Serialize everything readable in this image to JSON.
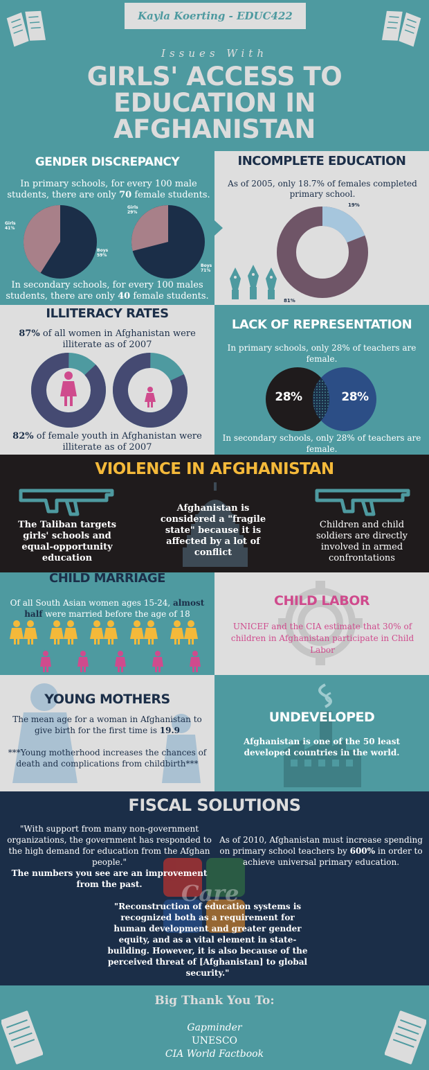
{
  "header": {
    "author": "Kayla Koerting - EDUC422",
    "kicker": "Issues With",
    "title_lines": [
      "GIRLS' ACCESS TO",
      "EDUCATION IN",
      "AFGHANISTAN"
    ]
  },
  "gender": {
    "title": "GENDER DISCREPANCY",
    "primary_text_a": "In primary schools, for every 100 male students, there are only ",
    "primary_num": "70",
    "primary_text_b": " female students.",
    "secondary_text_a": "In secondary schools, for every 100 males students, there are only ",
    "secondary_num": "40",
    "secondary_text_b": " female students.",
    "pie1": {
      "girls_label": "Girls",
      "girls_value": "41%",
      "boys_label": "Boys",
      "boys_value": "59%",
      "girls_pct": 41
    },
    "pie2": {
      "girls_label": "Girls",
      "girls_value": "29%",
      "boys_label": "Boys",
      "boys_value": "71%",
      "girls_pct": 29
    }
  },
  "incomplete": {
    "title": "INCOMPLETE EDUCATION",
    "text": "As of 2005, only 18.7% of females completed primary school.",
    "label_small": "19%",
    "label_large": "81%",
    "small_pct": 19
  },
  "illiteracy": {
    "title": "ILLITERACY RATES",
    "top_num": "87%",
    "top_text": " of all women in Afghanistan were illiterate as of 2007",
    "bottom_num": "82%",
    "bottom_text": " of female youth in Afghanistan were illiterate as of 2007",
    "ring1_pct": 87,
    "ring2_pct": 82
  },
  "representation": {
    "title": "LACK OF REPRESENTATION",
    "top_text": "In primary schools, only 28% of teachers are female.",
    "left_value": "28%",
    "right_value": "28%",
    "bottom_text": "In secondary schools, only 28% of teachers are female."
  },
  "violence": {
    "title": "VIOLENCE IN AFGHANISTAN",
    "col1": "The Taliban targets girls' schools and equal-opportunity education",
    "col2": "Afghanistan is considered a \"fragile state\" because it is affected by a lot of conflict",
    "col3": "Children and child soldiers are directly involved in armed confrontations"
  },
  "marriage": {
    "title": "CHILD MARRIAGE",
    "text_a": "Of all South Asian women ages 15-24, ",
    "text_bold": "almost half",
    "text_b": " were married before the age of 18"
  },
  "labor": {
    "title": "CHILD LABOR",
    "text": "UNICEF and the CIA estimate that 30% of children in Afghanistan participate in Child Labor"
  },
  "mothers": {
    "title": "YOUNG MOTHERS",
    "text_a": "The mean age for a woman in Afghanistan to give birth for the first time is ",
    "age": "19.9",
    "note": "***Young motherhood increases the chances of death and complications from childbirth***"
  },
  "undeveloped": {
    "title": "UNDEVELOPED",
    "text": "Afghanistan is one of the 50 least developed countries in the world."
  },
  "fiscal": {
    "title": "FISCAL SOLUTIONS",
    "quote1": "\"With support from many non-government organizations, the government has responded to the high demand for education from the Afghan people.\"",
    "quote1_bold": "The numbers you see are an improvement from the past.",
    "right_text_a": "As of 2010, Afghanistan must increase spending on primary school teachers by ",
    "right_pct": "600%",
    "right_text_b": " in order to achieve universal primary education.",
    "quote2": "\"Reconstruction of education systems is recognized both as a requirement for human development and greater gender equity, and as a vital element in state-building. However, it is also because of the perceived threat of [Afghanistan] to global security.\"",
    "watermark": "Care"
  },
  "thanks": {
    "title": "Big Thank You To:",
    "sources": [
      "Gapminder",
      "UNESCO",
      "CIA World Factbook"
    ]
  },
  "colors": {
    "teal": "#4e9aa0",
    "light_gray": "#dedede",
    "navy": "#1b2e48",
    "mauve": "#a88089",
    "plum": "#6f5567",
    "slate": "#454a72",
    "yellow": "#f4b93a",
    "pink": "#cf4b8d",
    "dark": "#1f1b1c"
  }
}
